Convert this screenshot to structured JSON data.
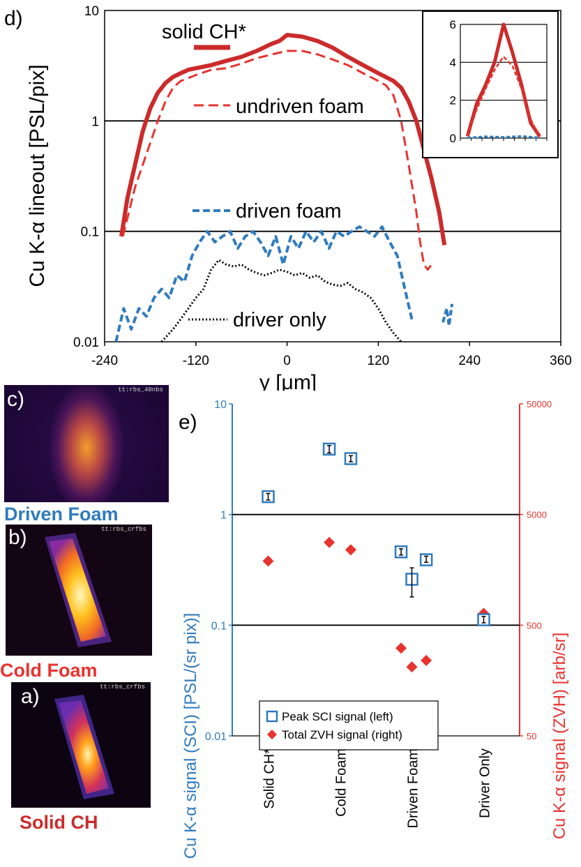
{
  "panel_d": {
    "label": "d)",
    "ylabel": "Cu K-α lineout  [PSL/pix]",
    "xlabel": "y [μm]",
    "yticks": [
      "10",
      "1",
      "0.1",
      "0.01"
    ],
    "xticks": [
      "-240",
      "-120",
      "0",
      "120",
      "240",
      "360"
    ],
    "legend": {
      "solid": "solid CH*",
      "undriven": "undriven foam",
      "driven": "driven foam",
      "driver": "driver only"
    },
    "inset_yticks": [
      "6",
      "4",
      "2",
      "0"
    ]
  },
  "panel_e": {
    "label": "e)",
    "ylabel_left": "Cu K-α signal (SCI)  [PSL/(sr pix)]",
    "ylabel_right": "Cu K-α signal (ZVH)  [arb/sr]",
    "yticks_left": [
      "10",
      "1",
      "0.1",
      "0.01"
    ],
    "yticks_right": [
      "50000",
      "5000",
      "500",
      "50"
    ],
    "categories": [
      "Solid CH*",
      "Cold Foam",
      "Driven Foam",
      "Driver Only"
    ],
    "legend": {
      "sci": "Peak SCI signal (left)",
      "zvh": "Total ZVH signal (right)"
    }
  },
  "images": {
    "c": {
      "label": "c)",
      "caption": "Driven Foam",
      "tag": "tt:rbs_40nbs"
    },
    "b": {
      "label": "b)",
      "caption": "Cold Foam",
      "tag": "tt:rbs_crfbs"
    },
    "a": {
      "label": "a)",
      "caption": "Solid CH",
      "tag": "tt:rbs_crfbs"
    }
  },
  "colors": {
    "red": "#cc2b2b",
    "lightred": "#e8332f",
    "blue": "#2f7bbf",
    "black": "#000000"
  },
  "chart_data": [
    {
      "type": "line",
      "xlabel": "y [μm]",
      "ylabel": "Cu K-α lineout  [PSL/pix]",
      "xlim": [
        -240,
        360
      ],
      "ylim": [
        0.01,
        10
      ],
      "yscale": "log",
      "series": [
        {
          "name": "solid CH*",
          "x": [
            -218,
            -210,
            -200,
            -190,
            -180,
            -170,
            -160,
            -150,
            -140,
            -130,
            -120,
            -100,
            -80,
            -60,
            -40,
            -20,
            -10,
            0,
            20,
            40,
            60,
            80,
            100,
            120,
            140,
            150,
            160,
            170,
            180,
            190,
            200,
            207
          ],
          "y": [
            0.09,
            0.2,
            0.4,
            0.8,
            1.3,
            1.8,
            2.2,
            2.5,
            2.7,
            2.9,
            3.0,
            3.2,
            3.5,
            3.8,
            4.3,
            5.0,
            5.3,
            6.0,
            5.8,
            5.3,
            4.6,
            3.8,
            3.2,
            2.7,
            2.3,
            2.0,
            1.5,
            1.0,
            0.55,
            0.3,
            0.15,
            0.075
          ]
        },
        {
          "name": "undriven foam",
          "x": [
            -216,
            -200,
            -185,
            -170,
            -160,
            -150,
            -140,
            -120,
            -100,
            -80,
            -60,
            -40,
            -20,
            0,
            20,
            40,
            60,
            80,
            100,
            120,
            130,
            140,
            150,
            160,
            170,
            175,
            180,
            185,
            190
          ],
          "y": [
            0.09,
            0.25,
            0.5,
            1.0,
            1.5,
            2.0,
            2.3,
            2.6,
            2.9,
            3.0,
            3.3,
            3.7,
            4.0,
            4.3,
            4.3,
            4.0,
            3.6,
            3.2,
            2.7,
            2.3,
            2.1,
            1.7,
            1.0,
            0.4,
            0.15,
            0.08,
            0.05,
            0.045,
            0.05
          ]
        },
        {
          "name": "driven foam",
          "x": [
            -225,
            -215,
            -205,
            -195,
            -185,
            -175,
            -165,
            -155,
            -145,
            -135,
            -125,
            -115,
            -105,
            -95,
            -85,
            -75,
            -65,
            -55,
            -45,
            -35,
            -25,
            -15,
            -5,
            5,
            15,
            25,
            35,
            45,
            55,
            65,
            75,
            85,
            95,
            105,
            115,
            125,
            135,
            145,
            155,
            165
          ],
          "y": [
            0.01,
            0.02,
            0.013,
            0.02,
            0.017,
            0.025,
            0.03,
            0.025,
            0.04,
            0.035,
            0.06,
            0.08,
            0.1,
            0.08,
            0.09,
            0.1,
            0.07,
            0.09,
            0.1,
            0.08,
            0.06,
            0.09,
            0.05,
            0.09,
            0.07,
            0.1,
            0.08,
            0.1,
            0.07,
            0.1,
            0.09,
            0.1,
            0.11,
            0.1,
            0.09,
            0.11,
            0.08,
            0.06,
            0.03,
            0.015
          ]
        },
        {
          "name": "driver only",
          "x": [
            -165,
            -150,
            -140,
            -130,
            -120,
            -110,
            -100,
            -90,
            -80,
            -70,
            -60,
            -50,
            -40,
            -30,
            -20,
            -10,
            0,
            10,
            20,
            30,
            40,
            50,
            60,
            70,
            80,
            90,
            100,
            110,
            120,
            130,
            140,
            150
          ],
          "y": [
            0.01,
            0.013,
            0.016,
            0.02,
            0.025,
            0.03,
            0.045,
            0.055,
            0.05,
            0.048,
            0.05,
            0.045,
            0.042,
            0.04,
            0.042,
            0.045,
            0.043,
            0.04,
            0.042,
            0.038,
            0.04,
            0.035,
            0.033,
            0.032,
            0.034,
            0.03,
            0.028,
            0.025,
            0.02,
            0.015,
            0.012,
            0.01
          ]
        }
      ]
    },
    {
      "type": "line",
      "xlim": [
        -240,
        240
      ],
      "ylim": [
        0,
        6
      ],
      "series": [
        {
          "name": "solid CH*",
          "x": [
            -200,
            -150,
            -100,
            -50,
            0,
            50,
            100,
            150,
            200
          ],
          "y": [
            0.1,
            1.8,
            2.8,
            4.0,
            6.0,
            4.5,
            2.8,
            0.8,
            0.1
          ]
        },
        {
          "name": "undriven foam",
          "x": [
            -200,
            -150,
            -100,
            -50,
            0,
            50,
            100,
            150,
            200
          ],
          "y": [
            0.1,
            1.5,
            2.6,
            3.6,
            4.3,
            3.8,
            2.6,
            1.0,
            0.05
          ]
        },
        {
          "name": "driven foam",
          "x": [
            -200,
            -100,
            0,
            100,
            200
          ],
          "y": [
            0.02,
            0.08,
            0.05,
            0.1,
            0.02
          ]
        }
      ]
    },
    {
      "type": "scatter",
      "categories": [
        "Solid CH*",
        "Cold Foam",
        "Driven Foam",
        "Driver Only"
      ],
      "ylabel": "Cu K-α signal (SCI)  [PSL/(sr pix)]",
      "ylabel_right": "Cu K-α signal (ZVH)  [arb/sr]",
      "ylim": [
        0.01,
        10
      ],
      "ylim_right": [
        50,
        50000
      ],
      "yscale": "log",
      "series": [
        {
          "name": "Peak SCI signal (left)",
          "points": [
            {
              "x": 1.0,
              "y": 1.45,
              "err": [
                1.35,
                1.55
              ]
            },
            {
              "x": 1.85,
              "y": 3.9,
              "err": [
                3.6,
                4.2
              ]
            },
            {
              "x": 2.15,
              "y": 3.2,
              "err": [
                3.0,
                3.4
              ]
            },
            {
              "x": 2.85,
              "y": 0.46,
              "err": [
                0.43,
                0.49
              ]
            },
            {
              "x": 3.0,
              "y": 0.26,
              "err": [
                0.18,
                0.33
              ]
            },
            {
              "x": 3.2,
              "y": 0.39,
              "err": [
                0.37,
                0.42
              ]
            },
            {
              "x": 4.0,
              "y": 0.112,
              "err": [
                0.105,
                0.12
              ]
            }
          ]
        },
        {
          "name": "Total ZVH signal (right)",
          "points": [
            {
              "x": 1.0,
              "y": 1900
            },
            {
              "x": 1.85,
              "y": 2800
            },
            {
              "x": 2.15,
              "y": 2400
            },
            {
              "x": 2.85,
              "y": 310
            },
            {
              "x": 3.0,
              "y": 210
            },
            {
              "x": 3.2,
              "y": 240
            },
            {
              "x": 4.0,
              "y": 640
            }
          ]
        }
      ],
      "note": "ZVH values read on right axis"
    }
  ]
}
